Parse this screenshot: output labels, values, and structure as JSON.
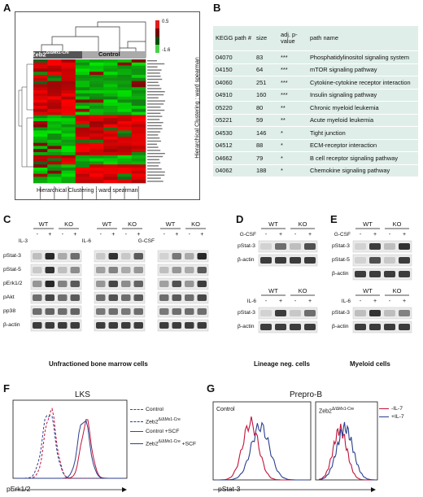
{
  "panels": {
    "A": "A",
    "B": "B",
    "C": "C",
    "D": "D",
    "E": "E",
    "F": "F",
    "G": "G"
  },
  "heatmap": {
    "group_zeb2": "Zeb2",
    "group_zeb2_sup": "Δ/ΔMx1-Cre",
    "group_control": "Control",
    "legend_max": "0.5",
    "legend_min": "-1.6",
    "xlabel": "Hierarchical Clustering : ward spearman",
    "ylabel": "Hierarchical Clustering : ward spearman"
  },
  "kegg": {
    "headers": {
      "path_num": "KEGG path #",
      "size": "size",
      "pvalue": "adj. p-value",
      "name": "path name"
    },
    "rows": [
      {
        "num": "04070",
        "size": "83",
        "p": "***",
        "name": "Phosphatidylinositol signaling system"
      },
      {
        "num": "04150",
        "size": "64",
        "p": "***",
        "name": "mTOR signaling pathway"
      },
      {
        "num": "04060",
        "size": "251",
        "p": "***",
        "name": "Cytokine-cytokine receptor interaction"
      },
      {
        "num": "04910",
        "size": "160",
        "p": "***",
        "name": "Insulin signaling pathway"
      },
      {
        "num": "05220",
        "size": "80",
        "p": "**",
        "name": "Chronic myeloid leukemia"
      },
      {
        "num": "05221",
        "size": "59",
        "p": "**",
        "name": "Acute myeloid leukemia"
      },
      {
        "num": "04530",
        "size": "146",
        "p": "*",
        "name": "Tight junction"
      },
      {
        "num": "04512",
        "size": "88",
        "p": "*",
        "name": "ECM-receptor interaction"
      },
      {
        "num": "04662",
        "size": "79",
        "p": "*",
        "name": "B cell receptor signaling pathway"
      },
      {
        "num": "04062",
        "size": "188",
        "p": "*",
        "name": "Chemokine signaling pathway"
      }
    ]
  },
  "blots": {
    "wt": "WT",
    "ko": "KO",
    "minus": "-",
    "plus": "+",
    "il3": "IL-3",
    "il6": "IL-6",
    "gcsf": "G-CSF",
    "c_rows": [
      "pStat-3",
      "pStat-5",
      "pErk1/2",
      "pAkt",
      "pp38",
      "β-actin"
    ],
    "c_caption": "Unfractioned bone marrow cells",
    "d_top_rows": [
      "pStat-3",
      "β-actin"
    ],
    "d_bot_rows": [
      "pStat-3",
      "β-actin"
    ],
    "d_caption": "Lineage neg. cells",
    "e_top_rows": [
      "pStat-3",
      "pStat-5",
      "β-actin"
    ],
    "e_bot_rows": [
      "pStat-3",
      "β-actin"
    ],
    "e_caption": "Myeloid cells"
  },
  "flow_f": {
    "title": "LKS",
    "xlabel": "pErk1/2",
    "legend": [
      {
        "label": "Control",
        "sup": "",
        "color": "#c0143c",
        "dash": true
      },
      {
        "label": "Zeb2",
        "sup": "Δ/ΔMx1-Cre",
        "color": "#2b3f8c",
        "dash": true
      },
      {
        "label": "Control +SCF",
        "sup": "",
        "color": "#c0143c",
        "dash": false
      },
      {
        "label": "Zeb2",
        "sup": "Δ/ΔMx1-Cre",
        "suffix": " +SCF",
        "color": "#2b3f8c",
        "dash": false
      }
    ]
  },
  "flow_g": {
    "title": "Prepro-B",
    "xlabel": "pStat-3",
    "left_label": "Control",
    "right_label": "Zeb2",
    "right_sup": "Δ/ΔMx1-Cre",
    "legend": [
      {
        "label": "-IL-7",
        "color": "#c0143c"
      },
      {
        "label": "+IL-7",
        "color": "#2b3f8c"
      }
    ]
  },
  "colors": {
    "red": "#c0143c",
    "blue": "#2b3f8c",
    "kegg_bg": "#dfeee8"
  }
}
